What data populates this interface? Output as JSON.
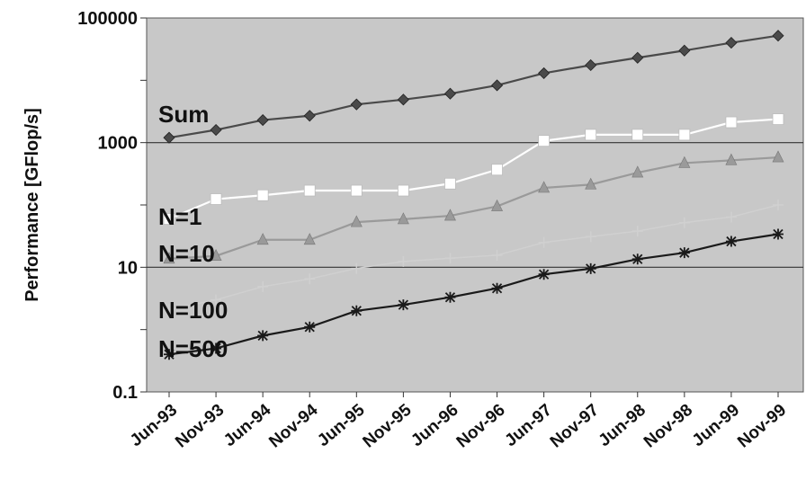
{
  "chart_data": {
    "type": "line",
    "title": "",
    "xlabel": "",
    "ylabel": "Performance [GFlop/s]",
    "yscale": "log",
    "ylim": [
      0.1,
      100000
    ],
    "yticks": [
      "0.1",
      "10",
      "1000",
      "100000"
    ],
    "grid": "major horizontal lines at 10 and 1000",
    "plot_background": "#c8c8c8",
    "categories": [
      "Jun-93",
      "Nov-93",
      "Jun-94",
      "Nov-94",
      "Jun-95",
      "Nov-95",
      "Jun-96",
      "Nov-96",
      "Jun-97",
      "Nov-97",
      "Jun-98",
      "Nov-98",
      "Jun-99",
      "Nov-99"
    ],
    "series": [
      {
        "name": "Sum",
        "color": "#4a4a4a",
        "marker": "diamond",
        "values": [
          1200,
          1600,
          2300,
          2700,
          4100,
          4900,
          6100,
          8300,
          13000,
          17500,
          23000,
          30000,
          40000,
          52000
        ]
      },
      {
        "name": "N=1",
        "color": "#ffffff",
        "marker": "square",
        "values": [
          59.7,
          124,
          143,
          170,
          170,
          170,
          220,
          368,
          1068,
          1338,
          1338,
          1338,
          2121,
          2379
        ]
      },
      {
        "name": "N=10",
        "color": "#9a9a9a",
        "marker": "triangle",
        "values": [
          13.7,
          15.2,
          27.6,
          27.6,
          53,
          59,
          67,
          95,
          188,
          212,
          330,
          470,
          520,
          580
        ]
      },
      {
        "name": "N=100",
        "color": "#d0d0d0",
        "marker": "plus",
        "values": [
          2.1,
          3.0,
          4.9,
          6.5,
          9.6,
          12.4,
          14.0,
          15.6,
          25,
          31,
          38,
          52,
          64,
          100
        ]
      },
      {
        "name": "N=500",
        "color": "#1a1a1a",
        "marker": "star",
        "values": [
          0.4,
          0.5,
          0.8,
          1.1,
          2.0,
          2.5,
          3.3,
          4.6,
          7.7,
          9.5,
          13.5,
          17.1,
          26,
          34
        ]
      }
    ]
  }
}
